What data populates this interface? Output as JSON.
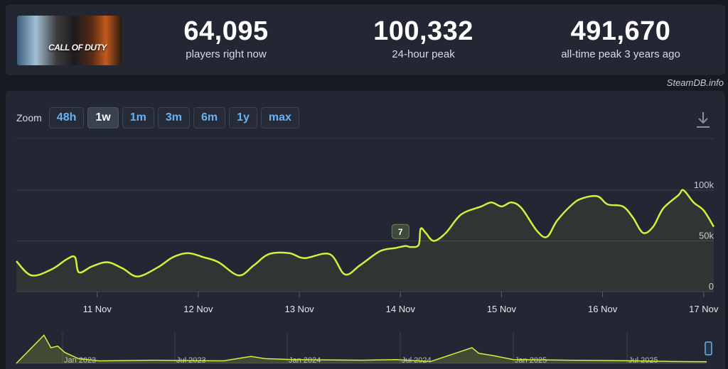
{
  "game": {
    "logo_text": "CALL OF DUTY"
  },
  "stats": [
    {
      "value": "64,095",
      "label": "players right now"
    },
    {
      "value": "100,332",
      "label": "24-hour peak"
    },
    {
      "value": "491,670",
      "label": "all-time peak 3 years ago"
    }
  ],
  "credit": "SteamDB.info",
  "zoom": {
    "label": "Zoom",
    "options": [
      "48h",
      "1w",
      "1m",
      "3m",
      "6m",
      "1y",
      "max"
    ],
    "selected": "1w"
  },
  "icons": {
    "download": "download-icon"
  },
  "colors": {
    "line": "#d7ee3c",
    "accent": "#67b2f5",
    "background": "#222733"
  },
  "chart_data": {
    "type": "line",
    "series": [
      {
        "x": [
          10.2,
          10.35,
          10.55,
          10.7,
          10.78,
          10.82,
          10.95,
          11.1,
          11.25,
          11.4,
          11.6,
          11.75,
          11.9,
          12.05,
          12.2,
          12.4,
          12.55,
          12.7,
          12.9,
          13.05,
          13.3,
          13.45,
          13.6,
          13.8,
          13.95,
          14.05,
          14.1,
          14.18,
          14.2,
          14.25,
          14.33,
          14.45,
          14.6,
          14.8,
          14.9,
          15.0,
          15.1,
          15.2,
          15.35,
          15.45,
          15.55,
          15.7,
          15.8,
          15.95,
          16.05,
          16.2,
          16.3,
          16.4,
          16.5,
          16.6,
          16.75,
          16.8,
          16.9,
          17.0,
          17.1
        ],
        "y": [
          30000,
          16000,
          22000,
          32000,
          34000,
          19000,
          25000,
          29000,
          23000,
          15000,
          24000,
          34000,
          38000,
          34000,
          29000,
          16000,
          26000,
          37000,
          38000,
          33000,
          37000,
          17000,
          26000,
          40000,
          43000,
          45000,
          44000,
          46000,
          62000,
          58000,
          50000,
          58000,
          76000,
          84000,
          88000,
          84000,
          88000,
          82000,
          60000,
          54000,
          70000,
          86000,
          92000,
          94000,
          86000,
          84000,
          73000,
          58000,
          64000,
          82000,
          95000,
          100000,
          88000,
          80000,
          64000
        ]
      }
    ],
    "xlim": [
      10.2,
      17.1
    ],
    "ylim": [
      0,
      100000
    ],
    "x_tick_values": [
      11,
      12,
      13,
      14,
      15,
      16,
      17
    ],
    "x_tick_labels": [
      "11 Nov",
      "12 Nov",
      "13 Nov",
      "14 Nov",
      "15 Nov",
      "16 Nov",
      "17 Nov"
    ],
    "y_tick_values": [
      0,
      50000,
      100000
    ],
    "y_tick_labels": [
      "0",
      "50k",
      "100k"
    ],
    "grid": true,
    "flag": {
      "x": 14.0,
      "y": 46000,
      "label": "7"
    },
    "navigator": {
      "labels": [
        "Jan 2023",
        "Jul 2023",
        "Jan 2024",
        "Jul 2024",
        "Jan 2025",
        "Jul 2025"
      ],
      "x": [
        0.0,
        0.02,
        0.04,
        0.05,
        0.06,
        0.07,
        0.09,
        0.12,
        0.2,
        0.3,
        0.34,
        0.36,
        0.4,
        0.5,
        0.55,
        0.6,
        0.66,
        0.67,
        0.69,
        0.72,
        0.8,
        0.9,
        0.95,
        1.0
      ],
      "y": [
        0.0,
        0.45,
        0.9,
        0.5,
        0.55,
        0.35,
        0.15,
        0.08,
        0.1,
        0.08,
        0.22,
        0.15,
        0.12,
        0.1,
        0.12,
        0.06,
        0.5,
        0.32,
        0.25,
        0.12,
        0.1,
        0.08,
        0.06,
        0.05
      ]
    }
  }
}
